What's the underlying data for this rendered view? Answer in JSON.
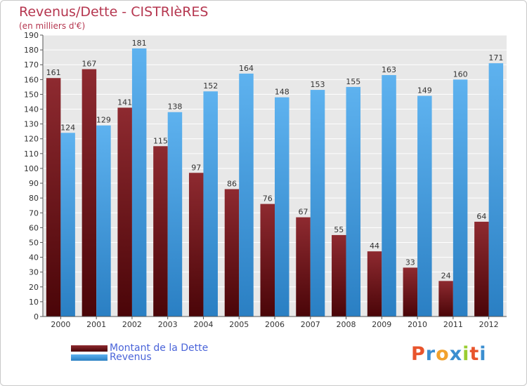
{
  "chart_data": {
    "type": "bar",
    "title": "Revenus/Dette - CISTRIèRES",
    "subtitle": "(en milliers d'€)",
    "categories": [
      "2000",
      "2001",
      "2002",
      "2003",
      "2004",
      "2005",
      "2006",
      "2007",
      "2008",
      "2009",
      "2010",
      "2011",
      "2012"
    ],
    "series": [
      {
        "name": "Montant de la Dette",
        "color": "#7a1a1e",
        "values": [
          161,
          167,
          141,
          115,
          97,
          86,
          76,
          67,
          55,
          44,
          33,
          24,
          64
        ]
      },
      {
        "name": "Revenus",
        "color": "#3d97de",
        "values": [
          124,
          129,
          181,
          138,
          152,
          164,
          148,
          153,
          155,
          163,
          149,
          160,
          171
        ]
      }
    ],
    "ylim": [
      0,
      190
    ],
    "ytick_step": 10,
    "grid": true,
    "legend_position": "bottom-left"
  },
  "legend": {
    "dette_label": "Montant de la Dette",
    "revenus_label": "Revenus"
  },
  "logo": {
    "letters": [
      "P",
      "r",
      "o",
      "x",
      "i",
      "t",
      "i"
    ],
    "colors": [
      "#e8542c",
      "#3b8ed0",
      "#f2a12c",
      "#3b8ed0",
      "#9acd32",
      "#e8542c",
      "#3b8ed0"
    ]
  }
}
